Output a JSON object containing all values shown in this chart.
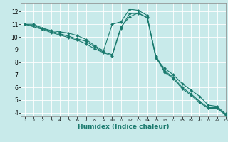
{
  "xlabel": "Humidex (Indice chaleur)",
  "background_color": "#c8eaea",
  "grid_color": "#ffffff",
  "line_color": "#1a7a6e",
  "xlim": [
    -0.5,
    23
  ],
  "ylim": [
    3.7,
    12.7
  ],
  "yticks": [
    4,
    5,
    6,
    7,
    8,
    9,
    10,
    11,
    12
  ],
  "xticks": [
    0,
    1,
    2,
    3,
    4,
    5,
    6,
    7,
    8,
    9,
    10,
    11,
    12,
    13,
    14,
    15,
    16,
    17,
    18,
    19,
    20,
    21,
    22,
    23
  ],
  "line1": {
    "x": [
      0,
      1,
      2,
      3,
      4,
      5,
      6,
      7,
      8,
      9,
      10,
      11,
      12,
      13,
      14,
      15,
      16,
      17,
      18,
      19,
      20,
      21,
      22,
      23
    ],
    "y": [
      11.0,
      11.0,
      10.7,
      10.5,
      10.4,
      10.3,
      10.1,
      9.8,
      9.3,
      8.9,
      11.0,
      11.2,
      12.2,
      12.1,
      11.7,
      8.3,
      7.5,
      7.0,
      6.3,
      5.8,
      5.3,
      4.6,
      4.5,
      3.9
    ]
  },
  "line2": {
    "x": [
      0,
      1,
      2,
      3,
      4,
      5,
      6,
      7,
      8,
      9,
      10,
      11,
      12,
      13,
      14,
      15,
      16,
      17,
      18,
      19,
      20,
      21,
      22,
      23
    ],
    "y": [
      11.0,
      10.9,
      10.65,
      10.45,
      10.25,
      10.05,
      9.85,
      9.65,
      9.2,
      8.8,
      8.6,
      10.8,
      11.6,
      11.9,
      11.5,
      8.5,
      7.3,
      6.8,
      6.0,
      5.5,
      4.9,
      4.4,
      4.4,
      3.85
    ]
  },
  "line3": {
    "x": [
      0,
      2,
      3,
      4,
      5,
      6,
      7,
      8,
      9,
      10,
      11,
      12,
      13,
      14,
      15,
      16,
      17,
      18,
      19,
      20,
      21,
      22,
      23
    ],
    "y": [
      11.0,
      10.6,
      10.35,
      10.15,
      9.95,
      9.75,
      9.45,
      9.05,
      8.75,
      8.5,
      10.7,
      11.85,
      11.85,
      11.55,
      8.4,
      7.2,
      6.7,
      5.9,
      5.4,
      4.8,
      4.35,
      4.35,
      3.8
    ]
  }
}
